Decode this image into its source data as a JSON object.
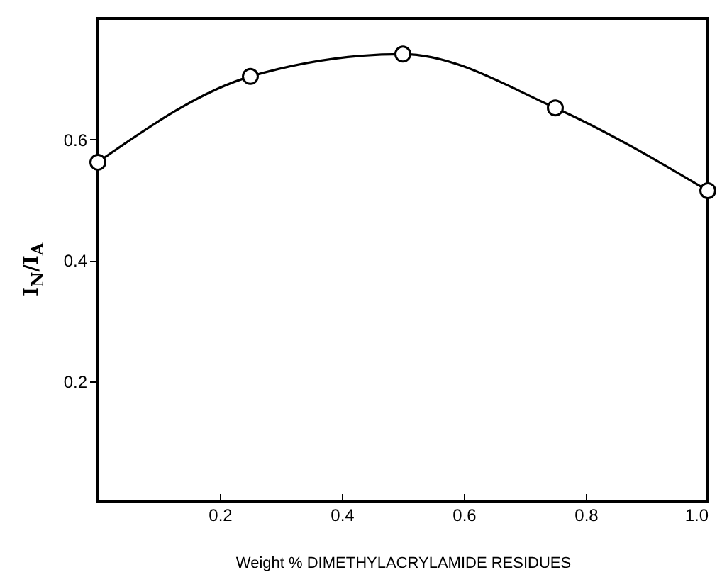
{
  "chart_data": {
    "type": "line",
    "xlabel": "Weight % DIMETHYLACRYLAMIDE RESIDUES",
    "ylabel": "I$_{N}$/I$_{A}$",
    "x": [
      0,
      0.25,
      0.5,
      0.75,
      1.0
    ],
    "series": [
      {
        "color": "#000000",
        "values": [
          0.562,
          0.704,
          0.741,
          0.652,
          0.515
        ]
      }
    ],
    "xlim": [
      0,
      1
    ],
    "ylim": [
      0,
      0.8
    ],
    "xticks": [
      0.2,
      0.4,
      0.6,
      0.8,
      {
        "value": 1,
        "label": "1.0"
      }
    ],
    "yticks": [
      0.2,
      0.4,
      0.6
    ],
    "marker": "circle"
  }
}
